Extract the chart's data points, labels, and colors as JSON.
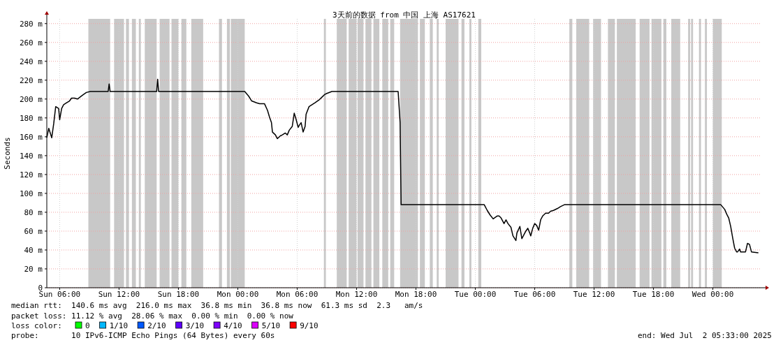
{
  "chart_data": {
    "type": "line",
    "title": "3天前的数据 from 中国 上海 AS17621",
    "ylabel": "Seconds",
    "xlim": [
      "2025-06-29T04:42",
      "2025-07-02T04:54"
    ],
    "ylim": [
      0,
      285
    ],
    "xticks": [
      {
        "value": "2025-06-29T06:00",
        "label": "Sun 06:00"
      },
      {
        "value": "2025-06-29T12:00",
        "label": "Sun 12:00"
      },
      {
        "value": "2025-06-29T18:00",
        "label": "Sun 18:00"
      },
      {
        "value": "2025-06-30T00:00",
        "label": "Mon 00:00"
      },
      {
        "value": "2025-06-30T06:00",
        "label": "Mon 06:00"
      },
      {
        "value": "2025-06-30T12:00",
        "label": "Mon 12:00"
      },
      {
        "value": "2025-06-30T18:00",
        "label": "Mon 18:00"
      },
      {
        "value": "2025-07-01T00:00",
        "label": "Tue 00:00"
      },
      {
        "value": "2025-07-01T06:00",
        "label": "Tue 06:00"
      },
      {
        "value": "2025-07-01T12:00",
        "label": "Tue 12:00"
      },
      {
        "value": "2025-07-01T18:00",
        "label": "Tue 18:00"
      },
      {
        "value": "2025-07-02T00:00",
        "label": "Wed 00:00"
      }
    ],
    "yticks": [
      0,
      {
        "value": 20,
        "label": "20 m"
      },
      {
        "value": 40,
        "label": "40 m"
      },
      {
        "value": 60,
        "label": "60 m"
      },
      {
        "value": 80,
        "label": "80 m"
      },
      {
        "value": 100,
        "label": "100 m"
      },
      {
        "value": 120,
        "label": "120 m"
      },
      {
        "value": 140,
        "label": "140 m"
      },
      {
        "value": 160,
        "label": "160 m"
      },
      {
        "value": 180,
        "label": "180 m"
      },
      {
        "value": 200,
        "label": "200 m"
      },
      {
        "value": 220,
        "label": "220 m"
      },
      {
        "value": 240,
        "label": "240 m"
      },
      {
        "value": 260,
        "label": "260 m"
      },
      {
        "value": 280,
        "label": "280 m"
      }
    ],
    "grid": true,
    "marker": "none",
    "line_style": "solid",
    "series": [
      {
        "color": "#000000",
        "x": [
          "2025-06-29T04:42",
          "2025-06-29T04:54",
          "2025-06-29T05:12",
          "2025-06-29T05:24",
          "2025-06-29T05:36",
          "2025-06-29T05:54",
          "2025-06-29T06:00",
          "2025-06-29T06:12",
          "2025-06-29T06:24",
          "2025-06-29T06:42",
          "2025-06-29T07:00",
          "2025-06-29T07:12",
          "2025-06-29T07:30",
          "2025-06-29T07:48",
          "2025-06-29T08:18",
          "2025-06-29T08:42",
          "2025-06-29T09:06",
          "2025-06-29T10:54",
          "2025-06-29T11:00",
          "2025-06-29T11:06",
          "2025-06-29T15:48",
          "2025-06-29T15:54",
          "2025-06-29T16:00",
          "2025-06-30T00:42",
          "2025-06-30T01:06",
          "2025-06-30T01:24",
          "2025-06-30T01:54",
          "2025-06-30T02:12",
          "2025-06-30T02:42",
          "2025-06-30T03:00",
          "2025-06-30T03:12",
          "2025-06-30T03:24",
          "2025-06-30T03:30",
          "2025-06-30T03:48",
          "2025-06-30T04:00",
          "2025-06-30T04:18",
          "2025-06-30T04:30",
          "2025-06-30T04:48",
          "2025-06-30T05:00",
          "2025-06-30T05:12",
          "2025-06-30T05:30",
          "2025-06-30T05:36",
          "2025-06-30T05:42",
          "2025-06-30T05:54",
          "2025-06-30T06:06",
          "2025-06-30T06:12",
          "2025-06-30T06:24",
          "2025-06-30T06:36",
          "2025-06-30T06:48",
          "2025-06-30T06:54",
          "2025-06-30T07:12",
          "2025-06-30T07:30",
          "2025-06-30T07:48",
          "2025-06-30T08:12",
          "2025-06-30T08:30",
          "2025-06-30T08:48",
          "2025-06-30T09:00",
          "2025-06-30T09:30",
          "2025-06-30T16:12",
          "2025-06-30T16:24",
          "2025-06-30T16:30",
          "2025-07-01T00:54",
          "2025-07-01T01:12",
          "2025-07-01T01:30",
          "2025-07-01T01:48",
          "2025-07-01T02:12",
          "2025-07-01T02:24",
          "2025-07-01T02:36",
          "2025-07-01T02:54",
          "2025-07-01T03:06",
          "2025-07-01T03:18",
          "2025-07-01T03:36",
          "2025-07-01T03:48",
          "2025-07-01T04:06",
          "2025-07-01T04:12",
          "2025-07-01T04:30",
          "2025-07-01T04:42",
          "2025-07-01T04:54",
          "2025-07-01T05:06",
          "2025-07-01T05:18",
          "2025-07-01T05:30",
          "2025-07-01T05:36",
          "2025-07-01T05:48",
          "2025-07-01T06:00",
          "2025-07-01T06:12",
          "2025-07-01T06:24",
          "2025-07-01T06:36",
          "2025-07-01T06:48",
          "2025-07-01T07:06",
          "2025-07-01T07:24",
          "2025-07-01T07:36",
          "2025-07-01T07:54",
          "2025-07-01T08:18",
          "2025-07-01T08:36",
          "2025-07-01T09:00",
          "2025-07-02T00:48",
          "2025-07-02T01:12",
          "2025-07-02T01:24",
          "2025-07-02T01:36",
          "2025-07-02T01:48",
          "2025-07-02T02:00",
          "2025-07-02T02:12",
          "2025-07-02T02:24",
          "2025-07-02T02:30",
          "2025-07-02T02:42",
          "2025-07-02T02:48",
          "2025-07-02T03:18",
          "2025-07-02T03:30",
          "2025-07-02T03:42",
          "2025-07-02T03:54",
          "2025-07-02T04:36"
        ],
        "values": [
          159,
          169,
          159,
          174,
          192,
          190,
          178,
          190,
          194,
          196,
          198,
          201,
          201,
          200,
          204,
          207,
          208,
          208,
          216,
          208,
          208,
          221,
          208,
          208,
          203,
          198,
          196,
          195,
          195,
          188,
          181,
          175,
          165,
          162,
          158,
          161,
          162,
          164,
          162,
          167,
          171,
          178,
          185,
          178,
          170,
          172,
          175,
          165,
          171,
          184,
          192,
          194,
          196,
          199,
          202,
          205,
          206,
          208,
          208,
          175,
          88,
          88,
          82,
          77,
          73,
          76,
          76,
          74,
          68,
          72,
          68,
          64,
          55,
          50,
          58,
          65,
          52,
          56,
          60,
          63,
          58,
          55,
          63,
          68,
          66,
          61,
          72,
          76,
          79,
          79,
          81,
          82,
          84,
          86,
          88,
          88,
          83,
          78,
          74,
          65,
          53,
          42,
          38,
          38,
          41,
          38,
          38,
          47,
          46,
          38,
          37
        ]
      }
    ],
    "bands": [
      {
        "axis": "x",
        "from": "2025-06-29T08:54",
        "to": "2025-06-29T11:06",
        "color": "#c8c8c8"
      },
      {
        "axis": "x",
        "from": "2025-06-29T11:30",
        "to": "2025-06-29T12:30",
        "color": "#c8c8c8"
      },
      {
        "axis": "x",
        "from": "2025-06-29T12:42",
        "to": "2025-06-29T13:00",
        "color": "#c8c8c8"
      },
      {
        "axis": "x",
        "from": "2025-06-29T13:18",
        "to": "2025-06-29T13:42",
        "color": "#c8c8c8"
      },
      {
        "axis": "x",
        "from": "2025-06-29T14:00",
        "to": "2025-06-29T14:12",
        "color": "#c8c8c8"
      },
      {
        "axis": "x",
        "from": "2025-06-29T14:36",
        "to": "2025-06-29T15:48",
        "color": "#c8c8c8"
      },
      {
        "axis": "x",
        "from": "2025-06-29T16:06",
        "to": "2025-06-29T17:06",
        "color": "#c8c8c8"
      },
      {
        "axis": "x",
        "from": "2025-06-29T17:18",
        "to": "2025-06-29T18:00",
        "color": "#c8c8c8"
      },
      {
        "axis": "x",
        "from": "2025-06-29T18:18",
        "to": "2025-06-29T18:48",
        "color": "#c8c8c8"
      },
      {
        "axis": "x",
        "from": "2025-06-29T19:18",
        "to": "2025-06-29T20:30",
        "color": "#c8c8c8"
      },
      {
        "axis": "x",
        "from": "2025-06-29T22:06",
        "to": "2025-06-29T22:24",
        "color": "#c8c8c8"
      },
      {
        "axis": "x",
        "from": "2025-06-29T22:54",
        "to": "2025-06-29T23:12",
        "color": "#c8c8c8"
      },
      {
        "axis": "x",
        "from": "2025-06-29T23:18",
        "to": "2025-06-30T00:42",
        "color": "#c8c8c8"
      },
      {
        "axis": "x",
        "from": "2025-06-30T08:42",
        "to": "2025-06-30T08:54",
        "color": "#c8c8c8"
      },
      {
        "axis": "x",
        "from": "2025-06-30T10:00",
        "to": "2025-06-30T11:00",
        "color": "#c8c8c8"
      },
      {
        "axis": "x",
        "from": "2025-06-30T11:12",
        "to": "2025-06-30T12:00",
        "color": "#c8c8c8"
      },
      {
        "axis": "x",
        "from": "2025-06-30T12:06",
        "to": "2025-06-30T12:42",
        "color": "#c8c8c8"
      },
      {
        "axis": "x",
        "from": "2025-06-30T12:54",
        "to": "2025-06-30T13:30",
        "color": "#c8c8c8"
      },
      {
        "axis": "x",
        "from": "2025-06-30T13:42",
        "to": "2025-06-30T14:18",
        "color": "#c8c8c8"
      },
      {
        "axis": "x",
        "from": "2025-06-30T14:36",
        "to": "2025-06-30T15:12",
        "color": "#c8c8c8"
      },
      {
        "axis": "x",
        "from": "2025-06-30T15:24",
        "to": "2025-06-30T15:48",
        "color": "#c8c8c8"
      },
      {
        "axis": "x",
        "from": "2025-06-30T16:24",
        "to": "2025-06-30T18:12",
        "color": "#c8c8c8"
      },
      {
        "axis": "x",
        "from": "2025-06-30T18:24",
        "to": "2025-06-30T18:54",
        "color": "#c8c8c8"
      },
      {
        "axis": "x",
        "from": "2025-06-30T19:24",
        "to": "2025-06-30T19:42",
        "color": "#c8c8c8"
      },
      {
        "axis": "x",
        "from": "2025-06-30T20:06",
        "to": "2025-06-30T20:18",
        "color": "#c8c8c8"
      },
      {
        "axis": "x",
        "from": "2025-06-30T21:00",
        "to": "2025-06-30T22:18",
        "color": "#c8c8c8"
      },
      {
        "axis": "x",
        "from": "2025-06-30T22:36",
        "to": "2025-06-30T22:54",
        "color": "#c8c8c8"
      },
      {
        "axis": "x",
        "from": "2025-06-30T23:24",
        "to": "2025-06-30T23:36",
        "color": "#c8c8c8"
      },
      {
        "axis": "x",
        "from": "2025-07-01T00:18",
        "to": "2025-07-01T00:36",
        "color": "#c8c8c8"
      },
      {
        "axis": "x",
        "from": "2025-07-01T09:30",
        "to": "2025-07-01T09:48",
        "color": "#c8c8c8"
      },
      {
        "axis": "x",
        "from": "2025-07-01T10:12",
        "to": "2025-07-01T11:30",
        "color": "#c8c8c8"
      },
      {
        "axis": "x",
        "from": "2025-07-01T11:54",
        "to": "2025-07-01T12:42",
        "color": "#c8c8c8"
      },
      {
        "axis": "x",
        "from": "2025-07-01T13:24",
        "to": "2025-07-01T14:06",
        "color": "#c8c8c8"
      },
      {
        "axis": "x",
        "from": "2025-07-01T14:18",
        "to": "2025-07-01T16:12",
        "color": "#c8c8c8"
      },
      {
        "axis": "x",
        "from": "2025-07-01T16:36",
        "to": "2025-07-01T17:36",
        "color": "#c8c8c8"
      },
      {
        "axis": "x",
        "from": "2025-07-01T17:48",
        "to": "2025-07-01T18:48",
        "color": "#c8c8c8"
      },
      {
        "axis": "x",
        "from": "2025-07-01T19:00",
        "to": "2025-07-01T19:18",
        "color": "#c8c8c8"
      },
      {
        "axis": "x",
        "from": "2025-07-01T19:48",
        "to": "2025-07-01T20:42",
        "color": "#c8c8c8"
      },
      {
        "axis": "x",
        "from": "2025-07-01T21:30",
        "to": "2025-07-01T21:42",
        "color": "#c8c8c8"
      },
      {
        "axis": "x",
        "from": "2025-07-01T21:48",
        "to": "2025-07-01T22:00",
        "color": "#c8c8c8"
      },
      {
        "axis": "x",
        "from": "2025-07-01T22:36",
        "to": "2025-07-01T22:48",
        "color": "#c8c8c8"
      },
      {
        "axis": "x",
        "from": "2025-07-01T23:12",
        "to": "2025-07-01T23:24",
        "color": "#c8c8c8"
      },
      {
        "axis": "x",
        "from": "2025-07-02T00:00",
        "to": "2025-07-02T00:54",
        "color": "#c8c8c8"
      }
    ],
    "annotations": [
      "median rtt:  140.6 ms avg  216.0 ms max  36.8 ms min  36.8 ms now  61.3 ms sd  2.3   am/s",
      "packet loss: 11.12 % avg  28.06 % max  0.00 % min  0.00 % now",
      "loss color:",
      "0",
      "1/10",
      "2/10",
      "3/10",
      "4/10",
      "5/10",
      "9/10",
      "probe:       10 IPv6-ICMP Echo Pings (64 Bytes) every 60s",
      "end: Wed Jul  2 05:33:00 2025"
    ]
  }
}
